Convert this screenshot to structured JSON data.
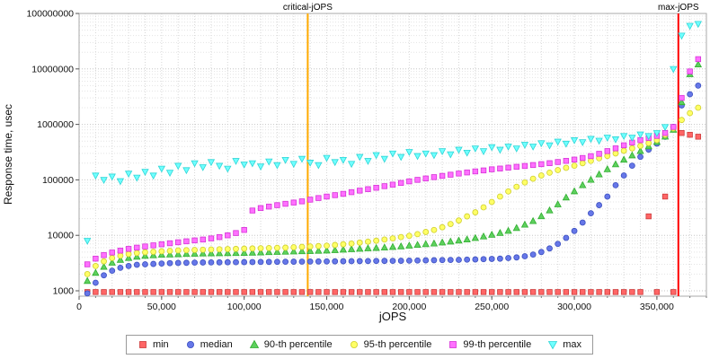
{
  "chart_data": {
    "type": "scatter",
    "title": "",
    "xlabel": "jOPS",
    "ylabel": "Response time, usec",
    "grid": "dotted",
    "legend_position": "bottom",
    "x_axis": {
      "min": 0,
      "max": 380000,
      "tick_values": [
        0,
        50000,
        100000,
        150000,
        200000,
        250000,
        300000,
        350000
      ],
      "tick_labels": [
        "0",
        "50,000",
        "100,000",
        "150,000",
        "200,000",
        "250,000",
        "300,000",
        "350,000"
      ],
      "minor_tick_step": 10000
    },
    "y_axis": {
      "scale": "log",
      "min": 1000,
      "min_draw": 800,
      "max": 100000000,
      "tick_values": [
        1000,
        10000,
        100000,
        1000000,
        10000000,
        100000000
      ],
      "tick_labels": [
        "1000",
        "10000",
        "100000",
        "1000000",
        "10000000",
        "100000000"
      ]
    },
    "vlines": [
      {
        "x": 138500,
        "label": "critical-jOPS",
        "color": "#ffaa00"
      },
      {
        "x": 363000,
        "label": "max-jOPS",
        "color": "#ff0000"
      }
    ],
    "x": [
      5000,
      10000,
      15000,
      20000,
      25000,
      30000,
      35000,
      40000,
      45000,
      50000,
      55000,
      60000,
      65000,
      70000,
      75000,
      80000,
      85000,
      90000,
      95000,
      100000,
      105000,
      110000,
      115000,
      120000,
      125000,
      130000,
      135000,
      140000,
      145000,
      150000,
      155000,
      160000,
      165000,
      170000,
      175000,
      180000,
      185000,
      190000,
      195000,
      200000,
      205000,
      210000,
      215000,
      220000,
      225000,
      230000,
      235000,
      240000,
      245000,
      250000,
      255000,
      260000,
      265000,
      270000,
      275000,
      280000,
      285000,
      290000,
      295000,
      300000,
      305000,
      310000,
      315000,
      320000,
      325000,
      330000,
      335000,
      340000,
      345000,
      350000,
      355000,
      360000,
      365000,
      370000,
      375000
    ],
    "series": [
      {
        "name": "min",
        "marker": "square",
        "color": "#ff6666",
        "edge": "#cc3a3a",
        "values": [
          950,
          950,
          950,
          950,
          950,
          950,
          950,
          950,
          950,
          950,
          950,
          950,
          950,
          950,
          950,
          950,
          950,
          950,
          950,
          950,
          950,
          950,
          950,
          950,
          950,
          950,
          950,
          950,
          950,
          950,
          950,
          950,
          950,
          950,
          950,
          950,
          950,
          950,
          950,
          950,
          950,
          950,
          950,
          950,
          950,
          950,
          950,
          950,
          950,
          950,
          950,
          950,
          950,
          950,
          950,
          950,
          950,
          950,
          950,
          950,
          950,
          950,
          950,
          950,
          950,
          950,
          950,
          950,
          22000,
          950,
          50000,
          950,
          700000,
          650000,
          600000
        ]
      },
      {
        "name": "median",
        "marker": "circle",
        "color": "#6677e8",
        "edge": "#3c50c0",
        "values": [
          900,
          1400,
          1900,
          2300,
          2600,
          2800,
          2950,
          3000,
          3050,
          3100,
          3150,
          3180,
          3200,
          3220,
          3240,
          3250,
          3260,
          3270,
          3280,
          3290,
          3300,
          3310,
          3320,
          3330,
          3340,
          3350,
          3360,
          3370,
          3380,
          3390,
          3400,
          3410,
          3420,
          3430,
          3440,
          3450,
          3460,
          3470,
          3480,
          3500,
          3520,
          3540,
          3560,
          3580,
          3600,
          3620,
          3650,
          3680,
          3720,
          3760,
          3800,
          3900,
          4000,
          4200,
          4500,
          5000,
          5800,
          7000,
          9000,
          12000,
          17000,
          25000,
          35000,
          50000,
          80000,
          120000,
          180000,
          260000,
          350000,
          450000,
          600000,
          900000,
          2200000,
          3500000,
          5000000
        ]
      },
      {
        "name": "90-th percentile",
        "marker": "triangle-up",
        "color": "#5ed05e",
        "edge": "#2fae2f",
        "values": [
          1500,
          2100,
          2700,
          3200,
          3600,
          3900,
          4100,
          4250,
          4350,
          4450,
          4500,
          4550,
          4600,
          4650,
          4700,
          4720,
          4740,
          4760,
          4780,
          4800,
          4850,
          4900,
          4950,
          5000,
          5050,
          5100,
          5150,
          5200,
          5250,
          5300,
          5400,
          5500,
          5600,
          5700,
          5800,
          5900,
          6000,
          6150,
          6300,
          6500,
          6700,
          6900,
          7100,
          7400,
          7700,
          8000,
          8400,
          8900,
          9500,
          10200,
          11000,
          12000,
          13500,
          15500,
          18000,
          22000,
          28000,
          36000,
          48000,
          62000,
          80000,
          100000,
          125000,
          155000,
          190000,
          230000,
          275000,
          330000,
          400000,
          480000,
          600000,
          800000,
          2500000,
          8000000,
          12000000
        ]
      },
      {
        "name": "95-th percentile",
        "marker": "circle",
        "color": "#ffff66",
        "edge": "#cfcf2e",
        "values": [
          2000,
          2800,
          3400,
          3900,
          4300,
          4600,
          4800,
          4950,
          5050,
          5150,
          5250,
          5350,
          5400,
          5450,
          5500,
          5550,
          5600,
          5650,
          5700,
          5750,
          5800,
          5850,
          5900,
          5950,
          6000,
          6100,
          6200,
          6300,
          6400,
          6500,
          6700,
          6900,
          7100,
          7400,
          7700,
          8000,
          8400,
          8800,
          9300,
          9800,
          10500,
          11500,
          12500,
          14000,
          16000,
          18500,
          22000,
          26000,
          32000,
          40000,
          50000,
          62000,
          75000,
          90000,
          105000,
          120000,
          135000,
          150000,
          165000,
          180000,
          200000,
          220000,
          245000,
          270000,
          300000,
          335000,
          370000,
          410000,
          460000,
          520000,
          650000,
          850000,
          1200000,
          1600000,
          2000000
        ]
      },
      {
        "name": "99-th percentile",
        "marker": "square",
        "color": "#ff70ff",
        "edge": "#d633d6",
        "values": [
          3000,
          3800,
          4400,
          4900,
          5300,
          5700,
          6000,
          6300,
          6600,
          6900,
          7200,
          7500,
          7800,
          8100,
          8400,
          8800,
          9300,
          10000,
          11000,
          12500,
          28000,
          31000,
          33000,
          35000,
          37000,
          39000,
          41000,
          44000,
          47000,
          50000,
          53000,
          56000,
          60000,
          64000,
          68000,
          72000,
          77000,
          82000,
          88000,
          94000,
          100000,
          106000,
          112000,
          118000,
          124000,
          130000,
          136000,
          142000,
          148000,
          155000,
          160000,
          166000,
          172000,
          178000,
          185000,
          192000,
          200000,
          210000,
          220000,
          232000,
          248000,
          268000,
          295000,
          330000,
          370000,
          420000,
          470000,
          520000,
          570000,
          620000,
          700000,
          900000,
          3000000,
          9000000,
          15000000
        ]
      },
      {
        "name": "max",
        "marker": "triangle-down",
        "color": "#70ffff",
        "edge": "#2ed6d6",
        "values": [
          8000,
          120000,
          100000,
          115000,
          95000,
          130000,
          110000,
          140000,
          120000,
          160000,
          135000,
          180000,
          150000,
          200000,
          170000,
          210000,
          180000,
          160000,
          220000,
          190000,
          200000,
          175000,
          215000,
          185000,
          230000,
          195000,
          240000,
          205000,
          185000,
          250000,
          210000,
          230000,
          195000,
          260000,
          220000,
          280000,
          240000,
          300000,
          260000,
          320000,
          270000,
          300000,
          280000,
          330000,
          290000,
          350000,
          310000,
          370000,
          330000,
          390000,
          350000,
          400000,
          370000,
          430000,
          400000,
          460000,
          420000,
          490000,
          450000,
          520000,
          480000,
          550000,
          510000,
          580000,
          540000,
          620000,
          580000,
          660000,
          620000,
          700000,
          900000,
          10000000,
          40000000,
          60000000,
          65000000
        ]
      }
    ]
  }
}
